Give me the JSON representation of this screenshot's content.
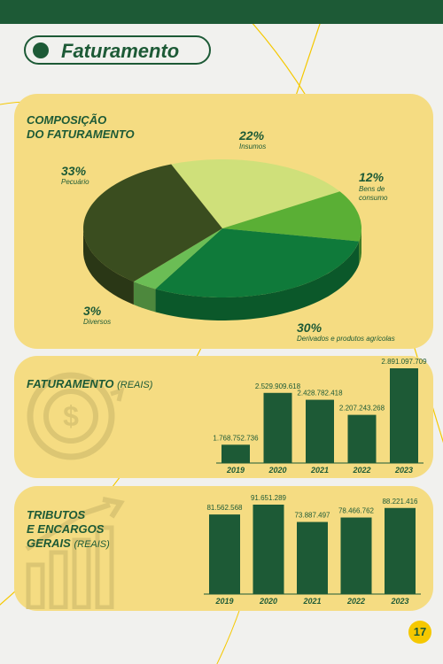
{
  "page": {
    "title": "Faturamento",
    "page_number": "17"
  },
  "composicao": {
    "title_line1": "COMPOSIÇÃO",
    "title_line2": "DO FATURAMENTO"
  },
  "faturamento": {
    "title": "FATURAMENTO",
    "unit": "(REAIS)"
  },
  "tributos": {
    "title_line1": "TRIBUTOS",
    "title_line2": "E ENCARGOS",
    "title_line3": "GERAIS",
    "unit": "(REAIS)"
  },
  "colors": {
    "dark_green": "#1d5a36",
    "panel_yellow": "#f5dc82",
    "accent_yellow": "#f5c800"
  },
  "chart_data": [
    {
      "type": "pie",
      "title": "COMPOSIÇÃO DO FATURAMENTO",
      "slices": [
        {
          "pct_label": "22%",
          "label": "Insumos",
          "value": 22,
          "color": "#cfe07a"
        },
        {
          "pct_label": "12%",
          "label": "Bens de consumo",
          "value": 12,
          "color": "#5aaf35"
        },
        {
          "pct_label": "30%",
          "label": "Derivados e produtos agrícolas",
          "value": 30,
          "color": "#0f7a3a"
        },
        {
          "pct_label": "3%",
          "label": "Diversos",
          "value": 3,
          "color": "#6bbd55"
        },
        {
          "pct_label": "33%",
          "label": "Pecuário",
          "value": 33,
          "color": "#3a4d1f"
        }
      ]
    },
    {
      "type": "bar",
      "title": "FATURAMENTO (REAIS)",
      "categories": [
        "2019",
        "2020",
        "2021",
        "2022",
        "2023"
      ],
      "values": [
        1768752736,
        2529909618,
        2428782418,
        2207243268,
        2891097709
      ],
      "value_labels": [
        "1.768.752.736",
        "2.529.909.618",
        "2.428.782.418",
        "2.207.243.268",
        "2.891.097.709"
      ]
    },
    {
      "type": "bar",
      "title": "TRIBUTOS E ENCARGOS GERAIS (REAIS)",
      "categories": [
        "2019",
        "2020",
        "2021",
        "2022",
        "2023"
      ],
      "values": [
        81562568,
        91651289,
        73887497,
        78466762,
        88221416
      ],
      "value_labels": [
        "81.562.568",
        "91.651.289",
        "73.887.497",
        "78.466.762",
        "88.221.416"
      ]
    }
  ]
}
